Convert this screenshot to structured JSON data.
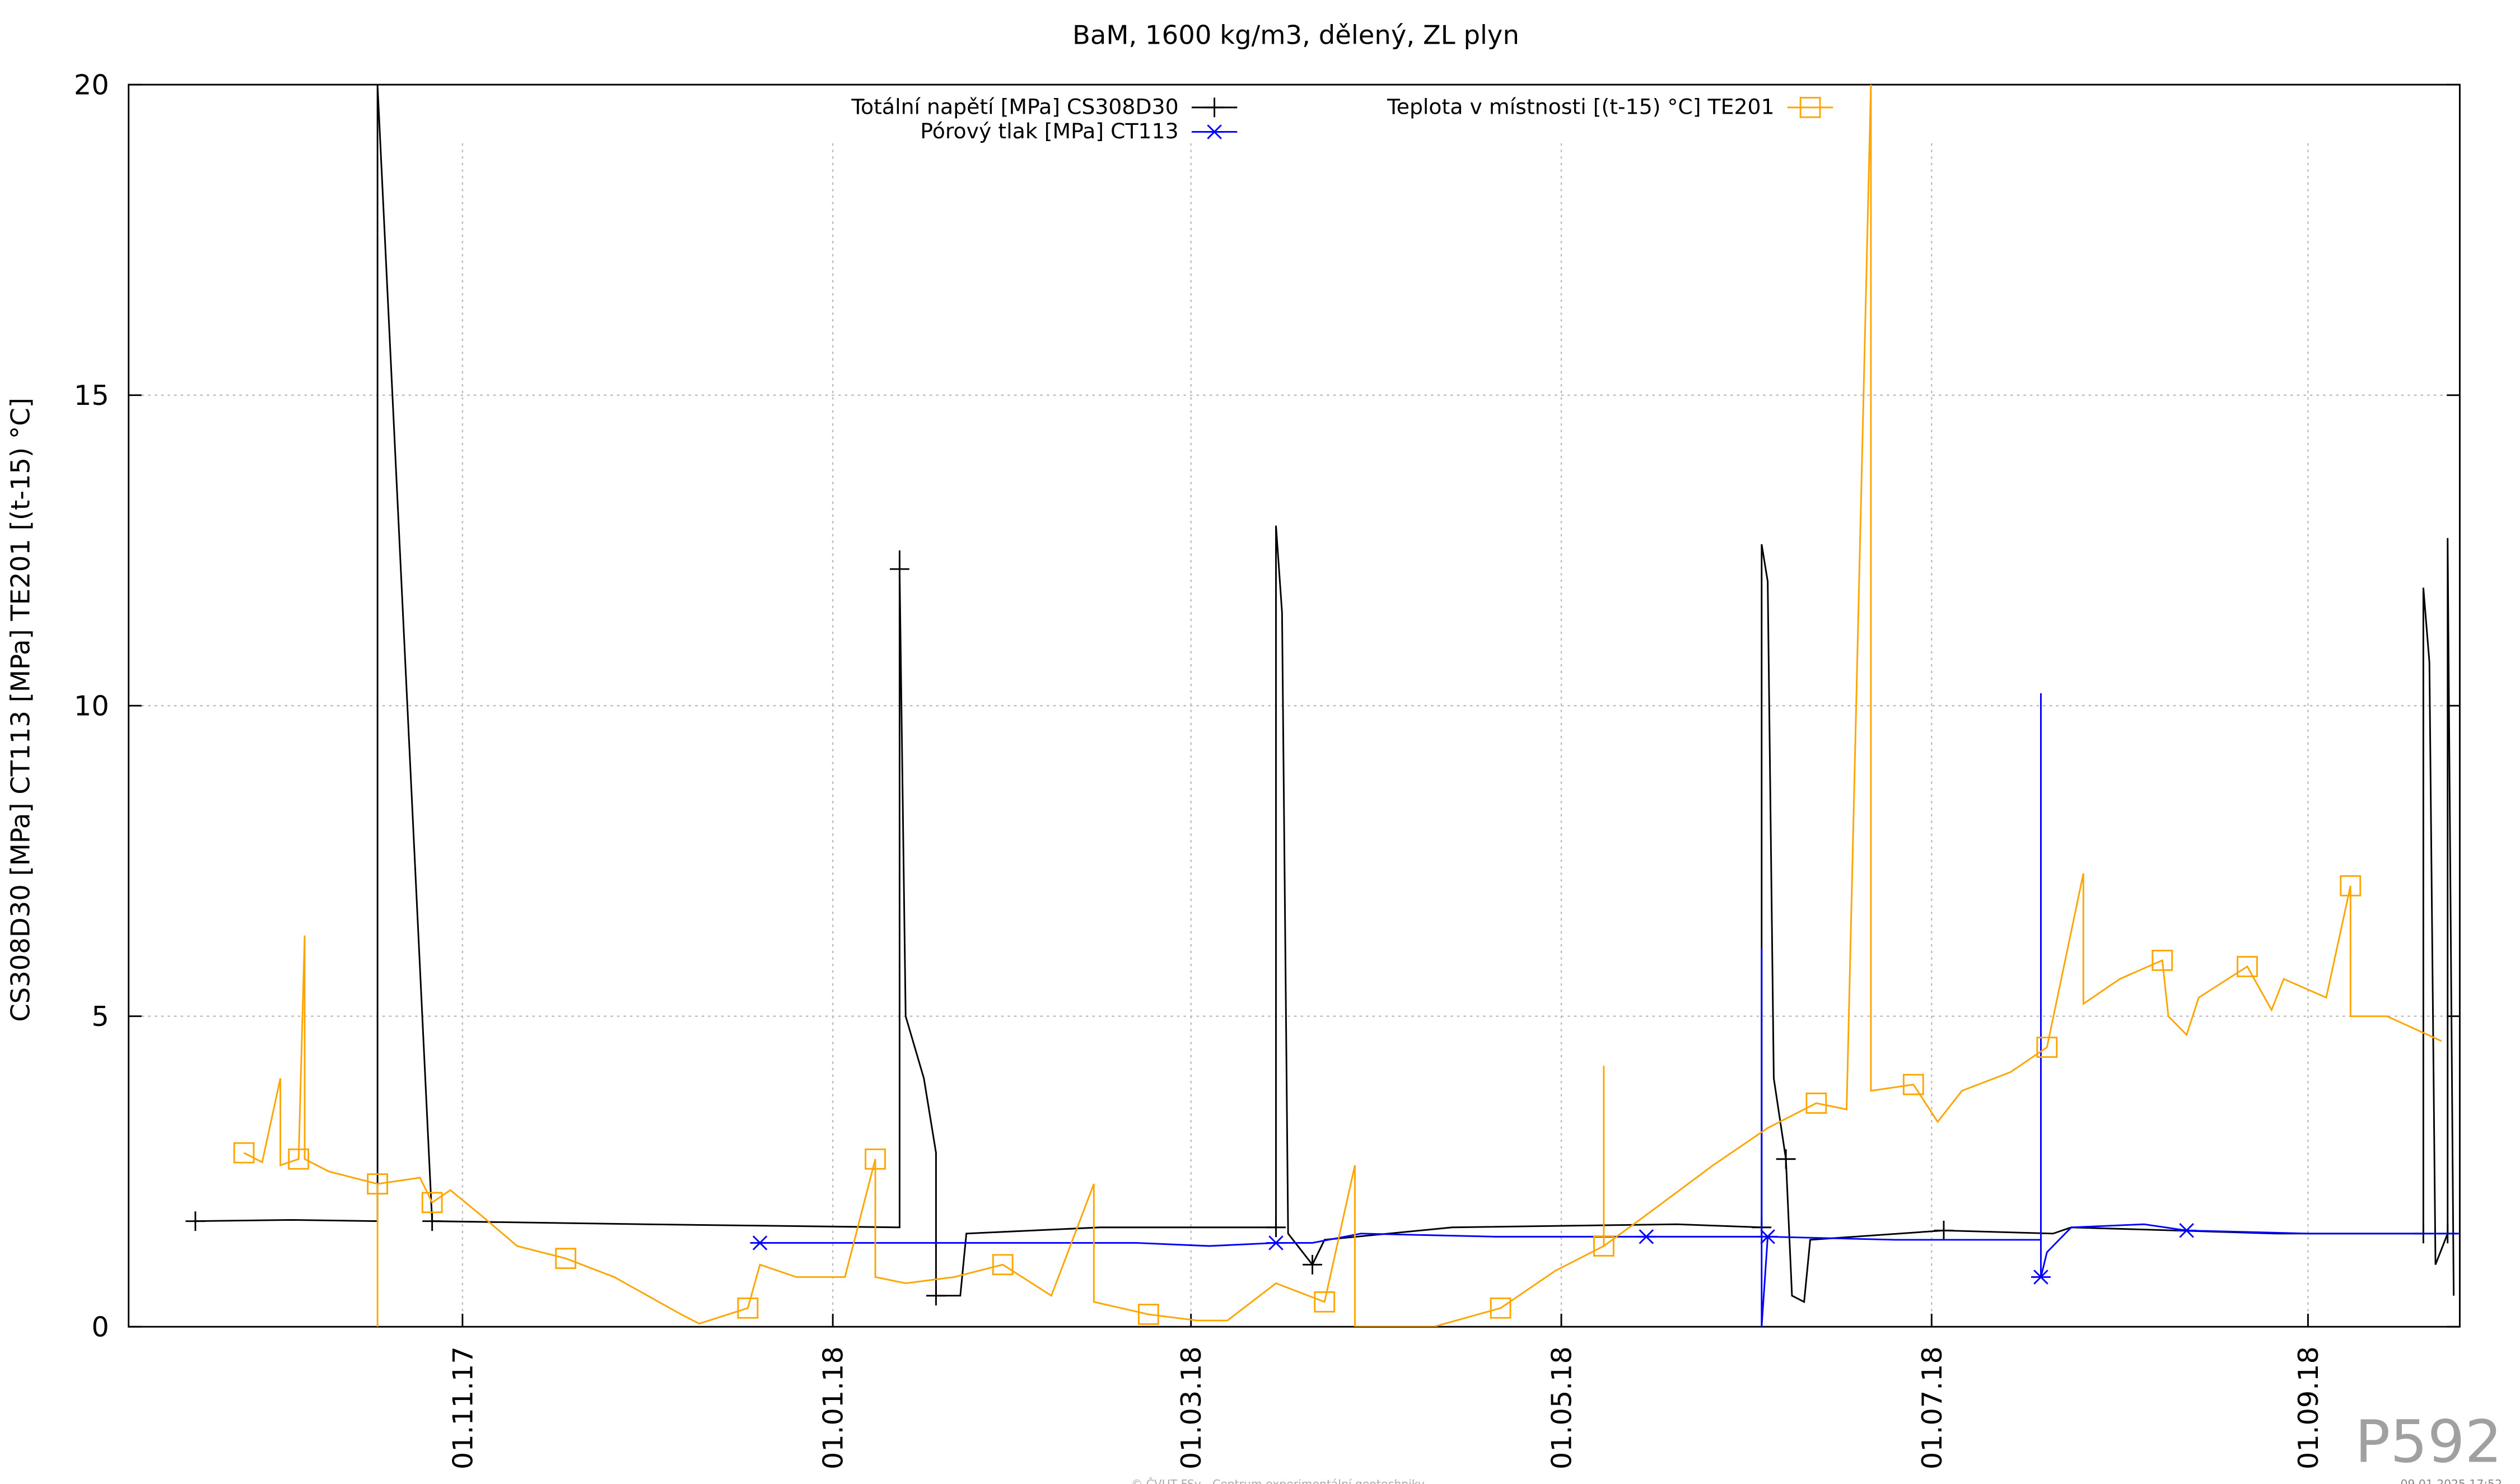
{
  "chart_data": {
    "type": "line",
    "title": "BaM, 1600 kg/m3, dělený, ZL plyn",
    "y_label": "CS308D30 [MPa] CT113 [MPa] TE201 [(t-15) °C]",
    "watermark": "P592",
    "footer": "© ČVUT FSv - Centrum experimentální geotechniky",
    "timestamp": "09.01.2025 17:52",
    "xlim": [
      "2017-09-07",
      "2018-09-26"
    ],
    "xticks": [
      {
        "value": "2017-11-01",
        "label": "01.11.17"
      },
      {
        "value": "2018-01-01",
        "label": "01.01.18"
      },
      {
        "value": "2018-03-01",
        "label": "01.03.18"
      },
      {
        "value": "2018-05-01",
        "label": "01.05.18"
      },
      {
        "value": "2018-07-01",
        "label": "01.07.18"
      },
      {
        "value": "2018-09-01",
        "label": "01.09.18"
      }
    ],
    "ylim": [
      0,
      20
    ],
    "yticks": [
      0,
      5,
      10,
      15,
      20
    ],
    "grid": true,
    "legend": "top",
    "series": [
      {
        "name": "Totální napětí [MPa] CS308D30",
        "color": "#000000",
        "marker": "plus",
        "x": [
          "2017-09-18",
          "2017-10-04",
          "2017-10-18",
          "2017-10-18",
          "2017-10-27",
          "2017-12-01",
          "2018-01-12",
          "2018-01-12",
          "2018-01-12",
          "2018-01-13",
          "2018-01-16",
          "2018-01-18",
          "2018-01-18",
          "2018-01-22",
          "2018-01-23",
          "2018-02-14",
          "2018-03-15",
          "2018-03-15",
          "2018-03-16",
          "2018-03-17",
          "2018-03-21",
          "2018-03-23",
          "2018-04-13",
          "2018-05-20",
          "2018-06-03",
          "2018-06-03",
          "2018-06-04",
          "2018-06-05",
          "2018-06-07",
          "2018-06-08",
          "2018-06-10",
          "2018-06-11",
          "2018-07-03",
          "2018-07-21",
          "2018-07-24",
          "2018-08-27",
          "2018-09-20",
          "2018-09-20",
          "2018-09-21",
          "2018-09-22",
          "2018-09-24",
          "2018-09-24",
          "2018-09-25"
        ],
        "values": [
          1.7,
          1.72,
          1.7,
          20,
          1.7,
          1.65,
          1.6,
          12.5,
          12.2,
          5,
          4,
          2.8,
          0.5,
          0.5,
          1.5,
          1.6,
          1.6,
          12.9,
          11.5,
          1.5,
          1.0,
          1.4,
          1.6,
          1.65,
          1.6,
          12.6,
          12,
          4,
          2.7,
          0.5,
          0.4,
          1.4,
          1.55,
          1.5,
          1.6,
          1.5,
          1.5,
          11.9,
          10.7,
          1.0,
          1.5,
          12.7,
          0.5
        ]
      },
      {
        "name": "Pórový tlak [MPa] CT113",
        "color": "#0000ff",
        "marker": "star",
        "x": [
          "2017-12-20",
          "2018-01-20",
          "2018-02-20",
          "2018-03-04",
          "2018-03-15",
          "2018-03-21",
          "2018-03-29",
          "2018-04-20",
          "2018-05-15",
          "2018-06-03",
          "2018-06-03",
          "2018-06-03",
          "2018-06-04",
          "2018-06-25",
          "2018-07-19",
          "2018-07-19",
          "2018-07-19",
          "2018-07-20",
          "2018-07-24",
          "2018-08-05",
          "2018-08-12",
          "2018-09-01",
          "2018-09-26"
        ],
        "values": [
          1.35,
          1.35,
          1.35,
          1.3,
          1.35,
          1.35,
          1.5,
          1.45,
          1.45,
          1.45,
          6.1,
          0,
          1.45,
          1.4,
          1.4,
          10.2,
          0.8,
          1.2,
          1.6,
          1.65,
          1.55,
          1.5,
          1.5
        ]
      },
      {
        "name": "Teplota v místnosti [(t-15) °C] TE201",
        "color": "#ffa500",
        "marker": "square",
        "x": [
          "2017-09-26",
          "2017-09-29",
          "2017-10-02",
          "2017-10-02",
          "2017-10-05",
          "2017-10-06",
          "2017-10-06",
          "2017-10-10",
          "2017-10-18",
          "2017-10-18",
          "2017-10-18",
          "2017-10-25",
          "2017-10-27",
          "2017-10-30",
          "2017-11-04",
          "2017-11-10",
          "2017-11-18",
          "2017-11-26",
          "2017-12-07",
          "2017-12-10",
          "2017-12-18",
          "2017-12-20",
          "2017-12-26",
          "2018-01-03",
          "2018-01-08",
          "2018-01-08",
          "2018-01-13",
          "2018-01-21",
          "2018-01-29",
          "2018-02-06",
          "2018-02-13",
          "2018-02-13",
          "2018-02-22",
          "2018-03-02",
          "2018-03-07",
          "2018-03-15",
          "2018-03-23",
          "2018-03-28",
          "2018-03-28",
          "2018-04-10",
          "2018-04-21",
          "2018-04-30",
          "2018-05-08",
          "2018-05-08",
          "2018-05-08",
          "2018-05-15",
          "2018-05-26",
          "2018-06-04",
          "2018-06-12",
          "2018-06-17",
          "2018-06-21",
          "2018-06-21",
          "2018-06-28",
          "2018-07-02",
          "2018-07-06",
          "2018-07-14",
          "2018-07-20",
          "2018-07-26",
          "2018-07-26",
          "2018-08-01",
          "2018-08-08",
          "2018-08-09",
          "2018-08-12",
          "2018-08-14",
          "2018-08-22",
          "2018-08-26",
          "2018-08-28",
          "2018-09-04",
          "2018-09-08",
          "2018-09-08",
          "2018-09-14",
          "2018-09-23"
        ],
        "values": [
          2.8,
          2.65,
          4.0,
          2.6,
          2.7,
          6.3,
          2.7,
          2.5,
          2.3,
          0,
          2.3,
          2.4,
          2.0,
          2.2,
          1.8,
          1.3,
          1.1,
          0.8,
          0.2,
          0.05,
          0.3,
          1.0,
          0.8,
          0.8,
          2.7,
          0.8,
          0.7,
          0.8,
          1.0,
          0.5,
          2.3,
          0.4,
          0.2,
          0.1,
          0.1,
          0.7,
          0.4,
          2.6,
          0,
          0,
          0.3,
          0.9,
          1.3,
          4.2,
          1.3,
          1.8,
          2.6,
          3.2,
          3.6,
          3.5,
          20,
          3.8,
          3.9,
          3.3,
          3.8,
          4.1,
          4.5,
          7.3,
          5.2,
          5.6,
          5.9,
          5.0,
          4.7,
          5.3,
          5.8,
          5.1,
          5.6,
          5.3,
          7.1,
          5.0,
          5.0,
          4.6
        ]
      }
    ]
  }
}
